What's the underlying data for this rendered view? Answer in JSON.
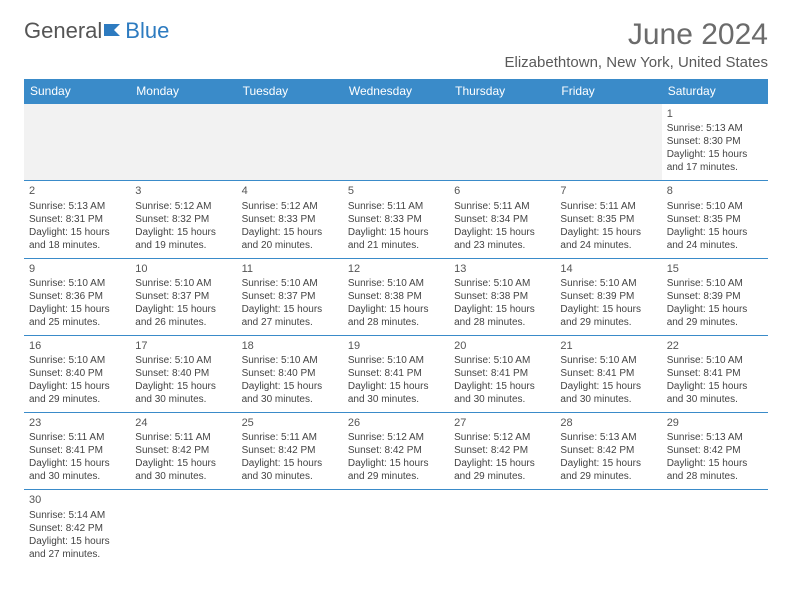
{
  "logo": {
    "part1": "General",
    "part2": "Blue"
  },
  "title": "June 2024",
  "location": "Elizabethtown, New York, United States",
  "colors": {
    "header_bg": "#3a8bc9",
    "header_text": "#ffffff",
    "border": "#3a8bc9",
    "logo_blue": "#2d7bc0",
    "text": "#444444",
    "title_color": "#6b6b6b"
  },
  "day_headers": [
    "Sunday",
    "Monday",
    "Tuesday",
    "Wednesday",
    "Thursday",
    "Friday",
    "Saturday"
  ],
  "weeks": [
    [
      null,
      null,
      null,
      null,
      null,
      null,
      {
        "n": "1",
        "sr": "Sunrise: 5:13 AM",
        "ss": "Sunset: 8:30 PM",
        "dl": "Daylight: 15 hours and 17 minutes."
      }
    ],
    [
      {
        "n": "2",
        "sr": "Sunrise: 5:13 AM",
        "ss": "Sunset: 8:31 PM",
        "dl": "Daylight: 15 hours and 18 minutes."
      },
      {
        "n": "3",
        "sr": "Sunrise: 5:12 AM",
        "ss": "Sunset: 8:32 PM",
        "dl": "Daylight: 15 hours and 19 minutes."
      },
      {
        "n": "4",
        "sr": "Sunrise: 5:12 AM",
        "ss": "Sunset: 8:33 PM",
        "dl": "Daylight: 15 hours and 20 minutes."
      },
      {
        "n": "5",
        "sr": "Sunrise: 5:11 AM",
        "ss": "Sunset: 8:33 PM",
        "dl": "Daylight: 15 hours and 21 minutes."
      },
      {
        "n": "6",
        "sr": "Sunrise: 5:11 AM",
        "ss": "Sunset: 8:34 PM",
        "dl": "Daylight: 15 hours and 23 minutes."
      },
      {
        "n": "7",
        "sr": "Sunrise: 5:11 AM",
        "ss": "Sunset: 8:35 PM",
        "dl": "Daylight: 15 hours and 24 minutes."
      },
      {
        "n": "8",
        "sr": "Sunrise: 5:10 AM",
        "ss": "Sunset: 8:35 PM",
        "dl": "Daylight: 15 hours and 24 minutes."
      }
    ],
    [
      {
        "n": "9",
        "sr": "Sunrise: 5:10 AM",
        "ss": "Sunset: 8:36 PM",
        "dl": "Daylight: 15 hours and 25 minutes."
      },
      {
        "n": "10",
        "sr": "Sunrise: 5:10 AM",
        "ss": "Sunset: 8:37 PM",
        "dl": "Daylight: 15 hours and 26 minutes."
      },
      {
        "n": "11",
        "sr": "Sunrise: 5:10 AM",
        "ss": "Sunset: 8:37 PM",
        "dl": "Daylight: 15 hours and 27 minutes."
      },
      {
        "n": "12",
        "sr": "Sunrise: 5:10 AM",
        "ss": "Sunset: 8:38 PM",
        "dl": "Daylight: 15 hours and 28 minutes."
      },
      {
        "n": "13",
        "sr": "Sunrise: 5:10 AM",
        "ss": "Sunset: 8:38 PM",
        "dl": "Daylight: 15 hours and 28 minutes."
      },
      {
        "n": "14",
        "sr": "Sunrise: 5:10 AM",
        "ss": "Sunset: 8:39 PM",
        "dl": "Daylight: 15 hours and 29 minutes."
      },
      {
        "n": "15",
        "sr": "Sunrise: 5:10 AM",
        "ss": "Sunset: 8:39 PM",
        "dl": "Daylight: 15 hours and 29 minutes."
      }
    ],
    [
      {
        "n": "16",
        "sr": "Sunrise: 5:10 AM",
        "ss": "Sunset: 8:40 PM",
        "dl": "Daylight: 15 hours and 29 minutes."
      },
      {
        "n": "17",
        "sr": "Sunrise: 5:10 AM",
        "ss": "Sunset: 8:40 PM",
        "dl": "Daylight: 15 hours and 30 minutes."
      },
      {
        "n": "18",
        "sr": "Sunrise: 5:10 AM",
        "ss": "Sunset: 8:40 PM",
        "dl": "Daylight: 15 hours and 30 minutes."
      },
      {
        "n": "19",
        "sr": "Sunrise: 5:10 AM",
        "ss": "Sunset: 8:41 PM",
        "dl": "Daylight: 15 hours and 30 minutes."
      },
      {
        "n": "20",
        "sr": "Sunrise: 5:10 AM",
        "ss": "Sunset: 8:41 PM",
        "dl": "Daylight: 15 hours and 30 minutes."
      },
      {
        "n": "21",
        "sr": "Sunrise: 5:10 AM",
        "ss": "Sunset: 8:41 PM",
        "dl": "Daylight: 15 hours and 30 minutes."
      },
      {
        "n": "22",
        "sr": "Sunrise: 5:10 AM",
        "ss": "Sunset: 8:41 PM",
        "dl": "Daylight: 15 hours and 30 minutes."
      }
    ],
    [
      {
        "n": "23",
        "sr": "Sunrise: 5:11 AM",
        "ss": "Sunset: 8:41 PM",
        "dl": "Daylight: 15 hours and 30 minutes."
      },
      {
        "n": "24",
        "sr": "Sunrise: 5:11 AM",
        "ss": "Sunset: 8:42 PM",
        "dl": "Daylight: 15 hours and 30 minutes."
      },
      {
        "n": "25",
        "sr": "Sunrise: 5:11 AM",
        "ss": "Sunset: 8:42 PM",
        "dl": "Daylight: 15 hours and 30 minutes."
      },
      {
        "n": "26",
        "sr": "Sunrise: 5:12 AM",
        "ss": "Sunset: 8:42 PM",
        "dl": "Daylight: 15 hours and 29 minutes."
      },
      {
        "n": "27",
        "sr": "Sunrise: 5:12 AM",
        "ss": "Sunset: 8:42 PM",
        "dl": "Daylight: 15 hours and 29 minutes."
      },
      {
        "n": "28",
        "sr": "Sunrise: 5:13 AM",
        "ss": "Sunset: 8:42 PM",
        "dl": "Daylight: 15 hours and 29 minutes."
      },
      {
        "n": "29",
        "sr": "Sunrise: 5:13 AM",
        "ss": "Sunset: 8:42 PM",
        "dl": "Daylight: 15 hours and 28 minutes."
      }
    ],
    [
      {
        "n": "30",
        "sr": "Sunrise: 5:14 AM",
        "ss": "Sunset: 8:42 PM",
        "dl": "Daylight: 15 hours and 27 minutes."
      },
      null,
      null,
      null,
      null,
      null,
      null
    ]
  ]
}
